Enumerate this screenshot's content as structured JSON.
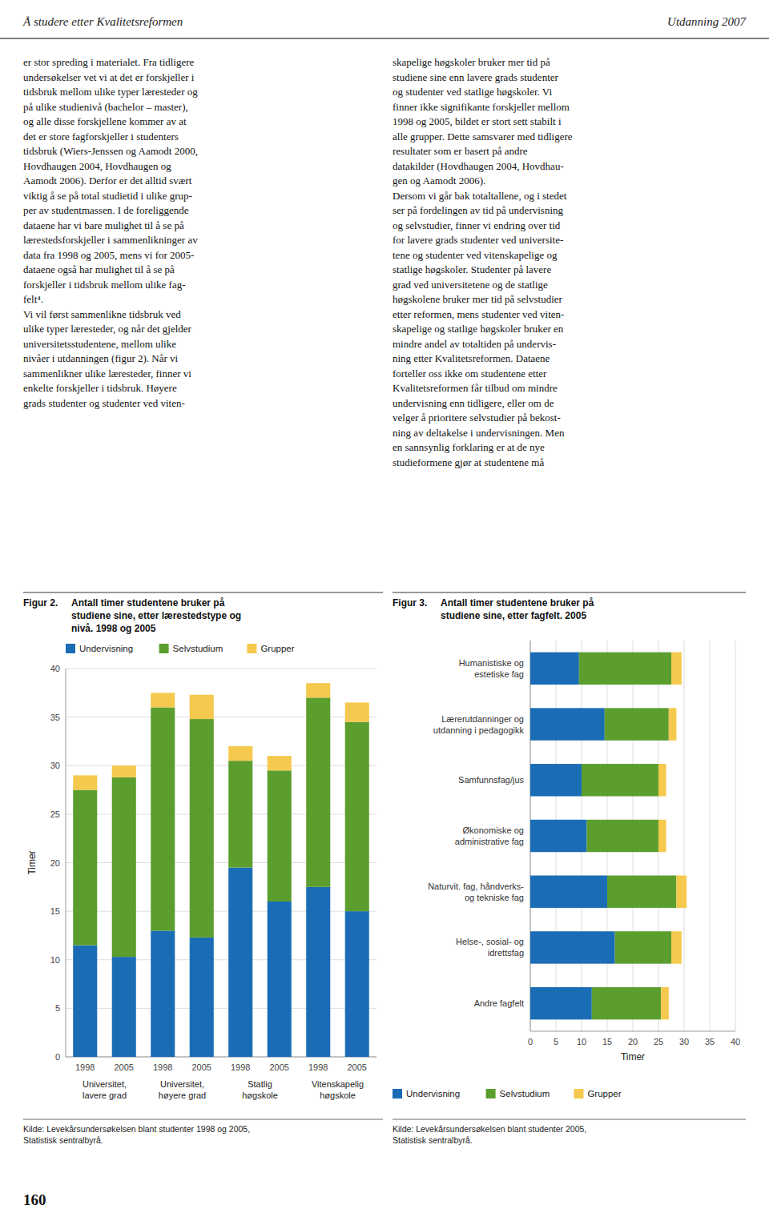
{
  "page": {
    "header_left": "Å studere etter Kvalitetsreformen",
    "header_right": "Utdanning 2007",
    "columns": [
      "er stor spreding i materialet. Fra tidligere\nundersøkelser vet vi at det er forskjeller i\ntidsbruk mellom ulike typer læresteder og\npå ulike studienivå (bachelor – master),\nog alle disse forskjellene kommer av at\ndet er store fagforskjeller i studenters\ntidsbruk (Wiers-Jenssen og Aamodt 2000,\nHovdhaugen 2004, Hovdhaugen og\nAamodt 2006). Derfor er det alltid svært\nviktig å se på total studietid i ulike grup-\nper av studentmassen. I de foreliggende\ndataene har vi bare mulighet til å se på\nlærestedsforskjeller i sammenlikninger av\ndata fra 1998 og 2005, mens vi for 2005-\ndataene også har mulighet til å se på\nforskjeller i tidsbruk mellom ulike fag-\nfelt⁴.\n\nVi vil først sammenlikne tidsbruk ved\nulike typer læresteder, og når det gjelder\nuniversitetsstudentene, mellom ulike\nnivåer i utdanningen (figur 2). Når vi\nsammenlikner ulike læresteder, finner vi\nenkelte forskjeller i tidsbruk. Høyere\ngrads studenter og studenter ved viten-",
      "skapelige høgskoler bruker mer tid på\nstudiene sine enn lavere grads studenter\nog studenter ved statlige høgskoler. Vi\nfinner ikke signifikante forskjeller mellom\n1998 og 2005, bildet er stort sett stabilt i\nalle grupper. Dette samsvarer med tidligere\nresultater som er basert på andre\ndatakilder (Hovdhaugen 2004, Hovdhau-\ngen og Aamodt 2006).\n\nDersom vi går bak totaltallene, og i stedet\nser på fordelingen av tid på undervisning\nog selvstudier, finner vi endring over tid\nfor lavere grads studenter ved universite-\ntene og studenter ved vitenskapelige og\nstatlige høgskoler. Studenter på lavere\ngrad ved universitetene og de statlige\nhøgskolene bruker mer tid på selvstudier\netter reformen, mens studenter ved viten-\nskapelige og statlige høgskoler bruker en\nmindre andel av totaltiden på undervis-\nning etter Kvalitetsreformen. Dataene\nforteller oss ikke om studentene etter\nKvalitetsreformen får tilbud om mindre\nundervisning enn tidligere, eller om de\nvelger å prioritere selvstudier på bekost-\nning av deltakelse i undervisningen. Men\nen sannsynlig forklaring er at de nye\nstudieformene gjør at studentene må"
    ],
    "footer": "160"
  },
  "chart_data": [
    {
      "type": "bar",
      "stacked": true,
      "grid": true,
      "legend": "top",
      "title": "Figur 2.",
      "subtitle": "Antall timer studentene bruker på\nstudiene sine, etter lærestedstype og\nnivå. 1998 og 2005",
      "ylabel": "Timer",
      "categories": [
        "1998",
        "2005",
        "1998",
        "2005",
        "1998",
        "2005",
        "1998",
        "2005"
      ],
      "groups": [
        "Universitet,\nlavere grad",
        "Universitet,\nhøyere grad",
        "Statlig\nhøgskole",
        "Vitenskapelig\nhøgskole"
      ],
      "series": [
        {
          "name": "Undervisning",
          "color": "#1a6db5",
          "values": [
            11.5,
            10.3,
            13.0,
            12.3,
            19.5,
            16.0,
            17.5,
            15.0
          ]
        },
        {
          "name": "Selvstudium",
          "color": "#5c9e2e",
          "values": [
            16.0,
            18.5,
            23.0,
            22.5,
            11.0,
            13.5,
            19.5,
            19.5
          ]
        },
        {
          "name": "Grupper",
          "color": "#f5c84e",
          "values": [
            1.5,
            1.2,
            1.5,
            2.5,
            1.5,
            1.5,
            1.5,
            2.0
          ]
        }
      ],
      "ylim": [
        0,
        40
      ],
      "yticks": [
        0,
        5,
        10,
        15,
        20,
        25,
        30,
        35,
        40
      ],
      "source": "Kilde: Levekårsundersøkelsen blant studenter 1998 og 2005,\nStatistisk sentralbyrå."
    },
    {
      "type": "bar",
      "stacked": true,
      "grid": true,
      "legend": "bottom",
      "orientation": "horizontal",
      "title": "Figur 3.",
      "subtitle": "Antall timer studentene bruker på\nstudiene sine, etter fagfelt. 2005",
      "xlabel": "Timer",
      "categories": [
        "Humanistiske og\nestetiske fag",
        "Lærerutdanninger og\nutdanning i pedagogikk",
        "Samfunnsfag/jus",
        "Økonomiske og\nadministrative fag",
        "Naturvit. fag, håndverks-\nog tekniske fag",
        "Helse-, sosial- og\nidrettsfag",
        "Andre fagfelt"
      ],
      "series": [
        {
          "name": "Undervisning",
          "color": "#1a6db5",
          "values": [
            9.5,
            14.5,
            10.0,
            11.0,
            15.0,
            16.5,
            12.0
          ]
        },
        {
          "name": "Selvstudium",
          "color": "#5c9e2e",
          "values": [
            18.0,
            12.5,
            15.0,
            14.0,
            13.5,
            11.0,
            13.5
          ]
        },
        {
          "name": "Grupper",
          "color": "#f5c84e",
          "values": [
            2.0,
            1.5,
            1.5,
            1.5,
            2.0,
            2.0,
            1.5
          ]
        }
      ],
      "xlim": [
        0,
        40
      ],
      "xticks": [
        0,
        5,
        10,
        15,
        20,
        25,
        30,
        35,
        40
      ],
      "source": "Kilde: Levekårsundersøkelsen blant studenter 2005,\nStatistisk sentralbyrå."
    }
  ]
}
